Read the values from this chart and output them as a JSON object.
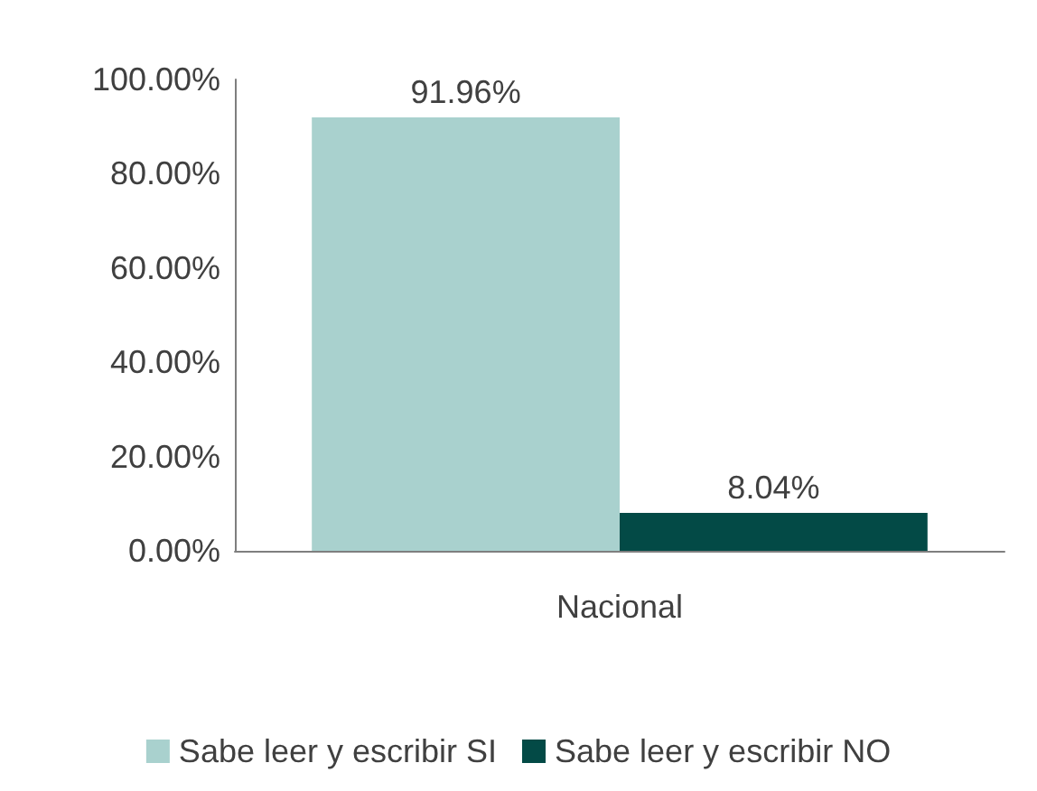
{
  "chart_data": {
    "type": "bar",
    "categories": [
      "Nacional"
    ],
    "series": [
      {
        "name": "Sabe leer y escribir SI",
        "color": "#a9d1ce",
        "values": [
          91.96
        ],
        "value_labels": [
          "91.96%"
        ]
      },
      {
        "name": "Sabe leer y escribir NO",
        "color": "#034a46",
        "values": [
          8.04
        ],
        "value_labels": [
          "8.04%"
        ]
      }
    ],
    "ylim": [
      0,
      100
    ],
    "yticks": [
      {
        "value": 0,
        "label": "0.00%"
      },
      {
        "value": 20,
        "label": "20.00%"
      },
      {
        "value": 40,
        "label": "40.00%"
      },
      {
        "value": 60,
        "label": "60.00%"
      },
      {
        "value": 80,
        "label": "80.00%"
      },
      {
        "value": 100,
        "label": "100.00%"
      }
    ],
    "grid": false,
    "legend": "bottom"
  }
}
